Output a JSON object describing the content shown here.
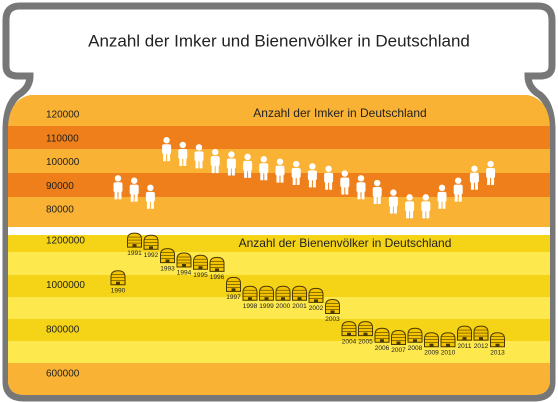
{
  "title": "Anzahl der Imker und Bienenvölker in Deutschland",
  "chart_data": [
    {
      "type": "pictogram",
      "icon": "person",
      "title": "Anzahl der Imker in Deutschland",
      "values": [
        90000,
        89000,
        86000,
        106000,
        104000,
        103000,
        101000,
        100000,
        99000,
        98000,
        97000,
        96000,
        95000,
        94000,
        92000,
        90000,
        88000,
        84000,
        82000,
        82000,
        86000,
        89000,
        94000,
        96000
      ],
      "color": "#ffffff",
      "ylim": [
        75000,
        125000
      ],
      "yticks": [
        80000,
        90000,
        100000,
        110000,
        120000
      ]
    },
    {
      "type": "pictogram",
      "icon": "beehive",
      "title": "Anzahl der Bienenvölker in Deutschland",
      "categories": [
        "1990",
        "1991",
        "1992",
        "1993",
        "1994",
        "1995",
        "1996",
        "1997",
        "1998",
        "1999",
        "2000",
        "2001",
        "2002",
        "2003",
        "2004",
        "2005",
        "2006",
        "2007",
        "2008",
        "2009",
        "2010",
        "2011",
        "2012",
        "2013"
      ],
      "values": [
        1030000,
        1200000,
        1190000,
        1130000,
        1110000,
        1100000,
        1090000,
        1000000,
        960000,
        960000,
        960000,
        960000,
        950000,
        900000,
        800000,
        800000,
        770000,
        760000,
        770000,
        750000,
        750000,
        780000,
        780000,
        750000
      ],
      "color": "#f5c400",
      "ylim": [
        550000,
        1250000
      ],
      "yticks": [
        600000,
        800000,
        1000000,
        1200000
      ]
    }
  ]
}
